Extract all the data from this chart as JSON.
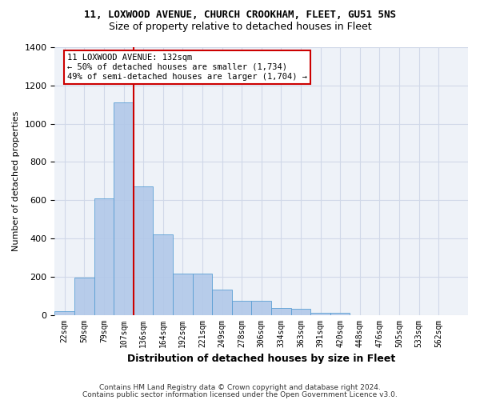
{
  "title_line1": "11, LOXWOOD AVENUE, CHURCH CROOKHAM, FLEET, GU51 5NS",
  "title_line2": "Size of property relative to detached houses in Fleet",
  "xlabel": "Distribution of detached houses by size in Fleet",
  "ylabel": "Number of detached properties",
  "bar_values": [
    20,
    195,
    610,
    1110,
    670,
    420,
    215,
    215,
    130,
    75,
    75,
    35,
    30,
    12,
    10,
    0,
    0,
    0,
    0,
    0
  ],
  "bar_labels": [
    "22sqm",
    "50sqm",
    "79sqm",
    "107sqm",
    "136sqm",
    "164sqm",
    "192sqm",
    "221sqm",
    "249sqm",
    "278sqm",
    "306sqm",
    "334sqm",
    "363sqm",
    "391sqm",
    "420sqm",
    "448sqm",
    "476sqm",
    "505sqm",
    "533sqm",
    "562sqm"
  ],
  "bar_color": "#aec6e8",
  "bar_edge_color": "#5a9fd4",
  "bar_alpha": 0.85,
  "vline_x_index": 3,
  "vline_color": "#cc0000",
  "annotation_text": "11 LOXWOOD AVENUE: 132sqm\n← 50% of detached houses are smaller (1,734)\n49% of semi-detached houses are larger (1,704) →",
  "annotation_box_color": "#cc0000",
  "ylim": [
    0,
    1400
  ],
  "yticks": [
    0,
    200,
    400,
    600,
    800,
    1000,
    1200,
    1400
  ],
  "grid_color": "#d0d8e8",
  "bg_color": "#eef2f8",
  "footer1": "Contains HM Land Registry data © Crown copyright and database right 2024.",
  "footer2": "Contains public sector information licensed under the Open Government Licence v3.0."
}
